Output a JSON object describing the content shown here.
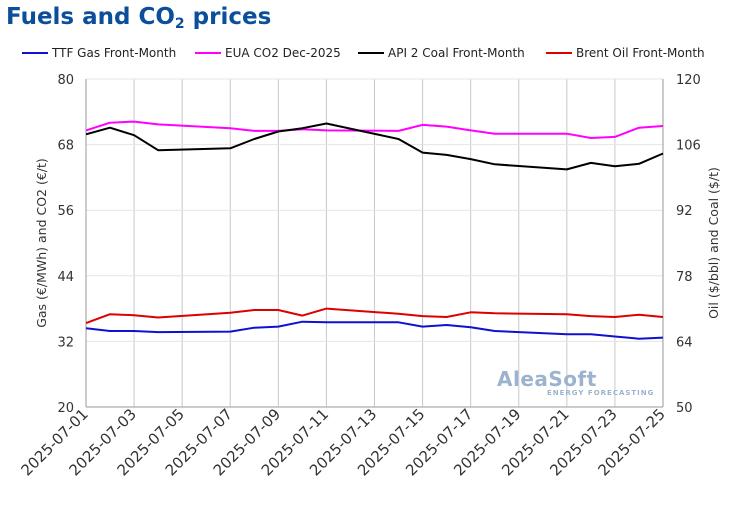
{
  "page": {
    "title_main": "Fuels and CO",
    "title_sub": "2",
    "title_tail": " prices",
    "logo_text": "AleaSoft",
    "logo_subtext": "ENERGY FORECASTING"
  },
  "chart_data": {
    "type": "line",
    "title": "Fuels and CO2 prices",
    "ylabel_left": "Gas (€/MWh) and CO2 (€/t)",
    "ylabel_right": "Oil ($/bbl) and Coal ($/t)",
    "ylim_left": [
      20,
      80
    ],
    "ylim_right": [
      50,
      120
    ],
    "yticks_left": [
      20,
      32,
      44,
      56,
      68,
      80
    ],
    "yticks_right": [
      50,
      64,
      78,
      92,
      106,
      120
    ],
    "x": [
      "2025-07-01",
      "2025-07-02",
      "2025-07-03",
      "2025-07-04",
      "2025-07-07",
      "2025-07-08",
      "2025-07-09",
      "2025-07-10",
      "2025-07-11",
      "2025-07-14",
      "2025-07-15",
      "2025-07-16",
      "2025-07-17",
      "2025-07-18",
      "2025-07-21",
      "2025-07-22",
      "2025-07-23",
      "2025-07-24",
      "2025-07-25"
    ],
    "xtick_labels": [
      "2025-07-01",
      "2025-07-03",
      "2025-07-05",
      "2025-07-07",
      "2025-07-09",
      "2025-07-11",
      "2025-07-13",
      "2025-07-15",
      "2025-07-17",
      "2025-07-19",
      "2025-07-21",
      "2025-07-23",
      "2025-07-25"
    ],
    "legend_position": "top",
    "grid": "vertical",
    "series": [
      {
        "name": "TTF Gas Front-Month",
        "axis": "left",
        "color": "#1010d0",
        "values": [
          34.4,
          33.9,
          33.9,
          33.7,
          33.8,
          34.5,
          34.7,
          35.6,
          35.5,
          35.5,
          34.7,
          35.0,
          34.6,
          33.9,
          33.3,
          33.3,
          32.9,
          32.5,
          32.7
        ]
      },
      {
        "name": "EUA CO2 Dec-2025",
        "axis": "left",
        "color": "#ff00ff",
        "values": [
          70.6,
          72.0,
          72.2,
          71.7,
          71.0,
          70.5,
          70.5,
          70.8,
          70.6,
          70.5,
          71.6,
          71.3,
          70.6,
          70.0,
          70.0,
          69.2,
          69.4,
          71.1,
          71.4
        ]
      },
      {
        "name": "API 2 Coal Front-Month",
        "axis": "right",
        "color": "#000000",
        "values": [
          108.2,
          109.6,
          108.0,
          104.8,
          105.2,
          107.2,
          108.8,
          109.5,
          110.5,
          107.2,
          104.3,
          103.8,
          102.9,
          101.8,
          100.7,
          102.1,
          101.4,
          101.9,
          104.1
        ]
      },
      {
        "name": "Brent Oil Front-Month",
        "axis": "right",
        "color": "#dd0000",
        "values": [
          67.9,
          69.8,
          69.6,
          69.1,
          70.1,
          70.7,
          70.7,
          69.5,
          71.0,
          69.9,
          69.4,
          69.2,
          70.2,
          70.0,
          69.8,
          69.4,
          69.2,
          69.7,
          69.2
        ]
      }
    ]
  }
}
